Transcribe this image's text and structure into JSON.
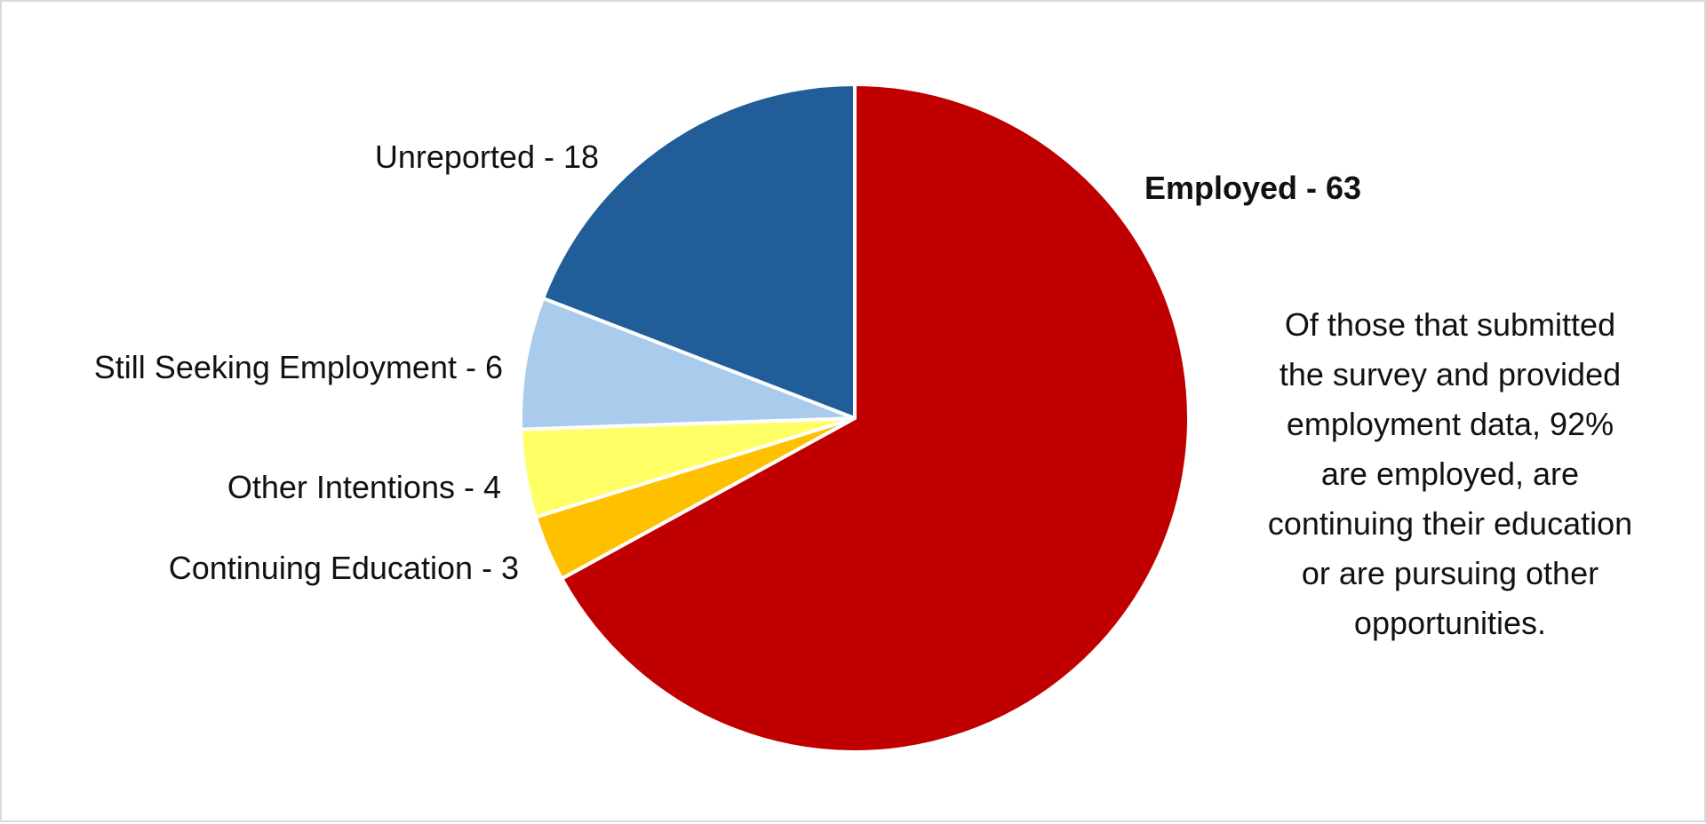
{
  "chart_data": {
    "type": "pie",
    "title": "",
    "slices": [
      {
        "label": "Employed - 63",
        "value": 63,
        "color": "#c00000",
        "emphasis": true
      },
      {
        "label": "Continuing Education - 3",
        "value": 3,
        "color": "#ffc000",
        "emphasis": false
      },
      {
        "label": "Other Intentions - 4",
        "value": 4,
        "color": "#ffff66",
        "emphasis": false
      },
      {
        "label": "Still Seeking Employment - 6",
        "value": 6,
        "color": "#a9cbec",
        "emphasis": false
      },
      {
        "label": "Unreported - 18",
        "value": 18,
        "color": "#215e99",
        "emphasis": false
      }
    ],
    "start": "12 o'clock",
    "direction": "clockwise",
    "slice_border_color": "#ffffff"
  },
  "annotation": {
    "lines": [
      "Of those that submitted",
      "the survey and provided",
      "employment data, 92%",
      "are employed, are",
      "continuing their education",
      "or are pursuing other",
      "opportunities."
    ]
  }
}
